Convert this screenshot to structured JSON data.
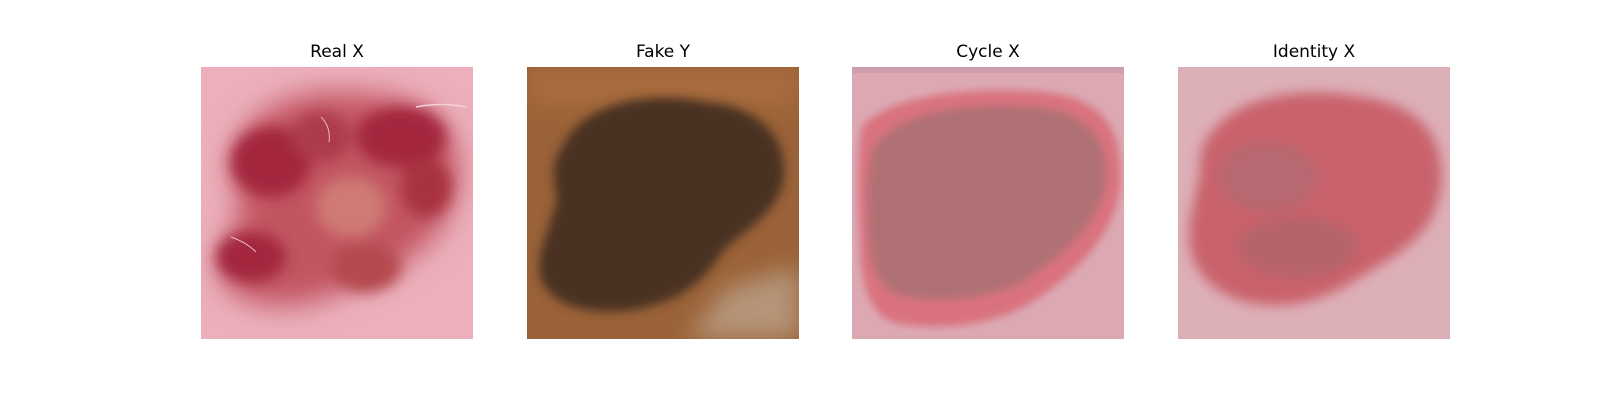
{
  "panels": [
    {
      "title": "Real X",
      "image": "skin-lesion-real-image"
    },
    {
      "title": "Fake Y",
      "image": "skin-lesion-fake-image"
    },
    {
      "title": "Cycle X",
      "image": "skin-lesion-cycle-image"
    },
    {
      "title": "Identity X",
      "image": "skin-lesion-identity-image"
    }
  ]
}
